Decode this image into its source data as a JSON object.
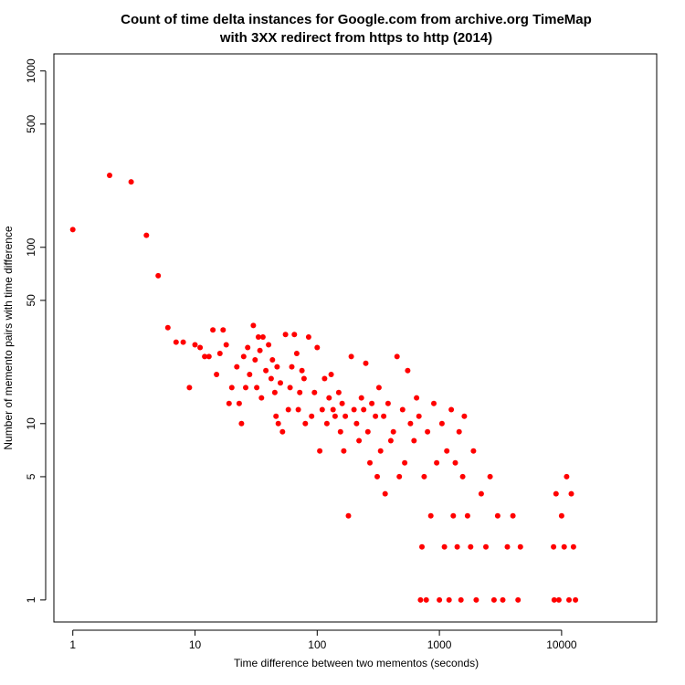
{
  "chart_data": {
    "type": "scatter",
    "title": "Count of time delta instances for Google.com from archive.org TimeMap",
    "subtitle": "with 3XX redirect from https to http (2014)",
    "xlabel": "Time difference between two mementos (seconds)",
    "ylabel": "Number of memento pairs with time difference",
    "x_scale": "log",
    "y_scale": "log",
    "xlim": [
      0.7,
      60000
    ],
    "ylim": [
      0.75,
      1250
    ],
    "x_ticks": [
      1,
      10,
      100,
      1000,
      10000
    ],
    "x_tick_labels": [
      "1",
      "10",
      "100",
      "1000",
      "10000"
    ],
    "y_ticks": [
      1,
      5,
      10,
      50,
      100,
      500,
      1000
    ],
    "y_tick_labels": [
      "1",
      "5",
      "10",
      "50",
      "100",
      "500",
      "1000"
    ],
    "grid": false,
    "point_color": "#ff0000",
    "series": [
      {
        "points": [
          [
            1,
            126
          ],
          [
            2,
            256
          ],
          [
            3,
            235
          ],
          [
            4,
            117
          ],
          [
            5,
            69
          ],
          [
            6,
            35
          ],
          [
            7,
            29
          ],
          [
            8,
            29
          ],
          [
            9,
            16
          ],
          [
            10,
            28
          ],
          [
            11,
            27
          ],
          [
            12,
            24
          ],
          [
            13,
            24
          ],
          [
            14,
            34
          ],
          [
            15,
            19
          ],
          [
            16,
            25
          ],
          [
            17,
            34
          ],
          [
            18,
            28
          ],
          [
            19,
            13
          ],
          [
            20,
            16
          ],
          [
            22,
            21
          ],
          [
            23,
            13
          ],
          [
            24,
            10
          ],
          [
            25,
            24
          ],
          [
            26,
            16
          ],
          [
            27,
            27
          ],
          [
            28,
            19
          ],
          [
            30,
            36
          ],
          [
            31,
            23
          ],
          [
            32,
            16
          ],
          [
            33,
            31
          ],
          [
            34,
            26
          ],
          [
            35,
            14
          ],
          [
            36,
            31
          ],
          [
            38,
            20
          ],
          [
            40,
            28
          ],
          [
            42,
            18
          ],
          [
            43,
            23
          ],
          [
            45,
            15
          ],
          [
            46,
            11
          ],
          [
            47,
            21
          ],
          [
            48,
            10
          ],
          [
            50,
            17
          ],
          [
            52,
            9
          ],
          [
            55,
            32
          ],
          [
            58,
            12
          ],
          [
            60,
            16
          ],
          [
            62,
            21
          ],
          [
            65,
            32
          ],
          [
            68,
            25
          ],
          [
            70,
            12
          ],
          [
            72,
            15
          ],
          [
            75,
            20
          ],
          [
            78,
            18
          ],
          [
            80,
            10
          ],
          [
            85,
            31
          ],
          [
            90,
            11
          ],
          [
            95,
            15
          ],
          [
            100,
            27
          ],
          [
            105,
            7
          ],
          [
            110,
            12
          ],
          [
            115,
            18
          ],
          [
            120,
            10
          ],
          [
            125,
            14
          ],
          [
            130,
            19
          ],
          [
            135,
            12
          ],
          [
            140,
            11
          ],
          [
            150,
            15
          ],
          [
            155,
            9
          ],
          [
            160,
            13
          ],
          [
            165,
            7
          ],
          [
            170,
            11
          ],
          [
            180,
            3
          ],
          [
            190,
            24
          ],
          [
            200,
            12
          ],
          [
            210,
            10
          ],
          [
            220,
            8
          ],
          [
            230,
            14
          ],
          [
            240,
            12
          ],
          [
            250,
            22
          ],
          [
            260,
            9
          ],
          [
            270,
            6
          ],
          [
            280,
            13
          ],
          [
            300,
            11
          ],
          [
            310,
            5
          ],
          [
            320,
            16
          ],
          [
            330,
            7
          ],
          [
            350,
            11
          ],
          [
            360,
            4
          ],
          [
            380,
            13
          ],
          [
            400,
            8
          ],
          [
            420,
            9
          ],
          [
            450,
            24
          ],
          [
            470,
            5
          ],
          [
            500,
            12
          ],
          [
            520,
            6
          ],
          [
            550,
            20
          ],
          [
            580,
            10
          ],
          [
            620,
            8
          ],
          [
            650,
            14
          ],
          [
            680,
            11
          ],
          [
            700,
            1
          ],
          [
            720,
            2
          ],
          [
            750,
            5
          ],
          [
            780,
            1
          ],
          [
            800,
            9
          ],
          [
            850,
            3
          ],
          [
            900,
            13
          ],
          [
            950,
            6
          ],
          [
            1000,
            1
          ],
          [
            1050,
            10
          ],
          [
            1100,
            2
          ],
          [
            1150,
            7
          ],
          [
            1200,
            1
          ],
          [
            1250,
            12
          ],
          [
            1300,
            3
          ],
          [
            1350,
            6
          ],
          [
            1400,
            2
          ],
          [
            1450,
            9
          ],
          [
            1500,
            1
          ],
          [
            1550,
            5
          ],
          [
            1600,
            11
          ],
          [
            1700,
            3
          ],
          [
            1800,
            2
          ],
          [
            1900,
            7
          ],
          [
            2000,
            1
          ],
          [
            2200,
            4
          ],
          [
            2400,
            2
          ],
          [
            2600,
            5
          ],
          [
            2800,
            1
          ],
          [
            3000,
            3
          ],
          [
            3300,
            1
          ],
          [
            3600,
            2
          ],
          [
            4000,
            3
          ],
          [
            4400,
            1
          ],
          [
            4600,
            2
          ],
          [
            8600,
            2
          ],
          [
            8700,
            1
          ],
          [
            9000,
            4
          ],
          [
            9500,
            1
          ],
          [
            10000,
            3
          ],
          [
            10500,
            2
          ],
          [
            11000,
            5
          ],
          [
            11500,
            1
          ],
          [
            12000,
            4
          ],
          [
            12500,
            2
          ],
          [
            13000,
            1
          ]
        ]
      }
    ]
  }
}
